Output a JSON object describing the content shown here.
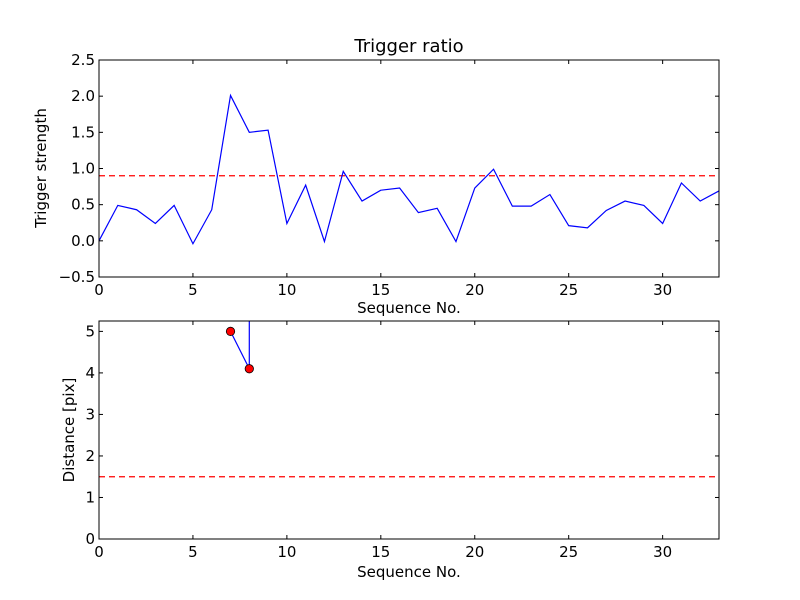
{
  "chart_data": [
    {
      "type": "line",
      "title": "Trigger ratio",
      "xlabel": "Sequence No.",
      "ylabel": "Trigger strength",
      "xlim": [
        0,
        33
      ],
      "ylim": [
        -0.5,
        2.5
      ],
      "xticks": [
        "0",
        "5",
        "10",
        "15",
        "20",
        "25",
        "30"
      ],
      "yticks": [
        "−0.5",
        "0.0",
        "0.5",
        "1.0",
        "1.5",
        "2.0",
        "2.5"
      ],
      "grid": false,
      "series": [
        {
          "color": "#0000ff",
          "style": "solid",
          "x": [
            0,
            1,
            2,
            3,
            4,
            5,
            6,
            7,
            8,
            9,
            10,
            11,
            12,
            13,
            14,
            15,
            16,
            17,
            18,
            19,
            20,
            21,
            22,
            23,
            24,
            25,
            26,
            27,
            28,
            29,
            30,
            31,
            32,
            33
          ],
          "y": [
            0.0,
            0.49,
            0.43,
            0.24,
            0.49,
            -0.04,
            0.43,
            2.01,
            1.5,
            1.53,
            0.24,
            0.77,
            -0.01,
            0.96,
            0.55,
            0.7,
            0.73,
            0.39,
            0.45,
            -0.01,
            0.73,
            0.99,
            0.48,
            0.48,
            0.64,
            0.21,
            0.18,
            0.42,
            0.55,
            0.49,
            0.24,
            0.8,
            0.55,
            0.69
          ]
        }
      ],
      "reference_line": {
        "y": 0.9,
        "color": "#ff0000",
        "style": "dashed"
      }
    },
    {
      "type": "line",
      "title": "",
      "xlabel": "Sequence No.",
      "ylabel": "Distance [pix]",
      "xlim": [
        0,
        33
      ],
      "ylim": [
        0,
        5.25
      ],
      "xticks": [
        "0",
        "5",
        "10",
        "15",
        "20",
        "25",
        "30"
      ],
      "yticks": [
        "0",
        "1",
        "2",
        "3",
        "4",
        "5"
      ],
      "grid": false,
      "series": [
        {
          "color": "#0000ff",
          "style": "solid",
          "marker_color": "#ff0000",
          "x": [
            7,
            8
          ],
          "y": [
            5.0,
            4.1
          ],
          "extends_above_top_at": 8
        }
      ],
      "reference_line": {
        "y": 1.5,
        "color": "#ff0000",
        "style": "dashed"
      }
    }
  ]
}
